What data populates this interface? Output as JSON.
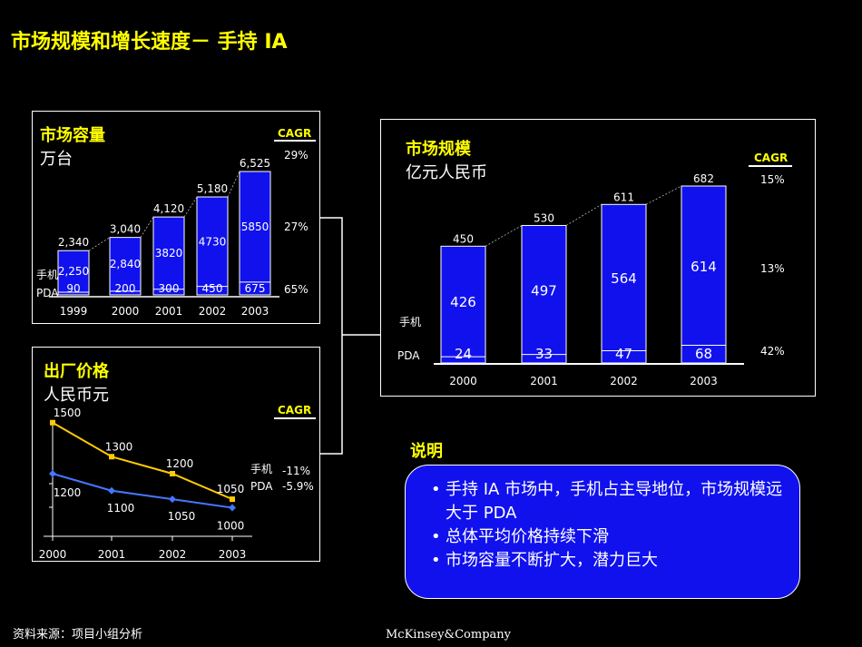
{
  "title": "市场规模和增长速度－ 手持 IA",
  "panels": {
    "volume": {
      "title": "市场容量",
      "unit": "万台",
      "cagr_label": "CAGR"
    },
    "size": {
      "title": "市场规模",
      "unit": "亿元人民币",
      "cagr_label": "CAGR"
    },
    "price": {
      "title": "出厂价格",
      "unit": "人民币元",
      "cagr_label": "CAGR"
    }
  },
  "chart_data": [
    {
      "type": "bar",
      "id": "market-volume",
      "title": "市场容量",
      "subtitle": "万台",
      "categories": [
        "1999",
        "2000",
        "2001",
        "2002",
        "2003"
      ],
      "totals_labels": [
        "2,340",
        "3,040",
        "4,120",
        "5,180",
        "6,525"
      ],
      "totals": [
        2340,
        3040,
        4120,
        5180,
        6525
      ],
      "series": [
        {
          "name": "手机",
          "labels": [
            "2,250",
            "2,840",
            "3820",
            "4730",
            "5850"
          ],
          "values": [
            2250,
            2840,
            3820,
            4730,
            5850
          ]
        },
        {
          "name": "PDA",
          "labels": [
            "90",
            "200",
            "300",
            "450",
            "675"
          ],
          "values": [
            90,
            200,
            300,
            450,
            675
          ]
        }
      ],
      "cagr": {
        "total": "29%",
        "手机": "27%",
        "PDA": "65%"
      },
      "ylim": [
        0,
        6525
      ]
    },
    {
      "type": "bar",
      "id": "market-size",
      "title": "市场规模",
      "subtitle": "亿元人民币",
      "categories": [
        "2000",
        "2001",
        "2002",
        "2003"
      ],
      "totals": [
        450,
        530,
        611,
        682
      ],
      "series": [
        {
          "name": "手机",
          "values": [
            426,
            497,
            564,
            614
          ]
        },
        {
          "name": "PDA",
          "values": [
            24,
            33,
            47,
            68
          ]
        }
      ],
      "cagr": {
        "total": "15%",
        "手机": "13%",
        "PDA": "42%"
      },
      "ylim": [
        0,
        682
      ]
    },
    {
      "type": "line",
      "id": "factory-price",
      "title": "出厂价格",
      "subtitle": "人民币元",
      "x": [
        "2000",
        "2001",
        "2002",
        "2003"
      ],
      "series": [
        {
          "name": "手机",
          "values": [
            1500,
            1300,
            1200,
            1050
          ],
          "color": "#FFCC00"
        },
        {
          "name": "PDA",
          "values": [
            1200,
            1100,
            1050,
            1000
          ],
          "color": "#4477FF"
        }
      ],
      "cagr": {
        "手机": "-11%",
        "PDA": "-5.9%"
      },
      "ylim": [
        800,
        1600
      ]
    }
  ],
  "notes": {
    "title": "说明",
    "items": [
      "手持 IA 市场中，手机占主导地位，市场规模远大于 PDA",
      "总体平均价格持续下滑",
      "市场容量不断扩大，潜力巨大"
    ]
  },
  "footer": {
    "source": "资料来源：项目小组分析",
    "logo": "McKinsey&Company"
  },
  "colors": {
    "bar": "#1111EE",
    "title": "#FFFF00",
    "background": "#000000"
  }
}
